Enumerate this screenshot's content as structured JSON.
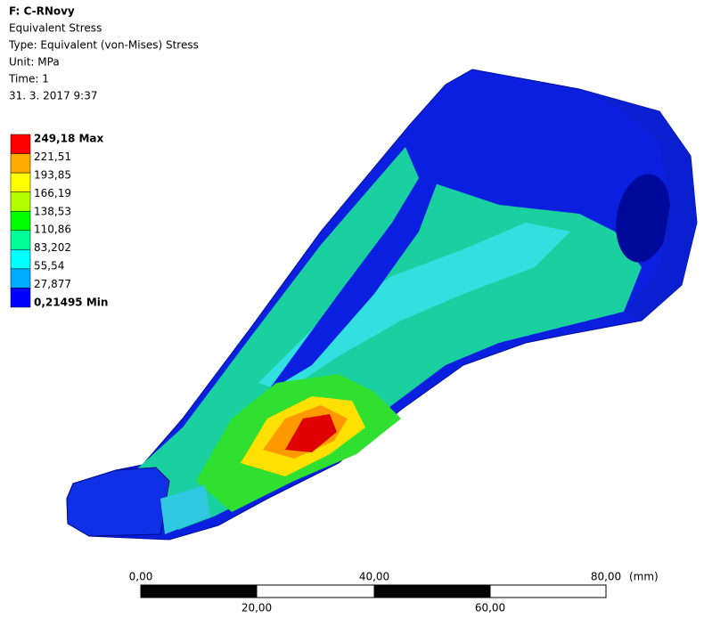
{
  "header": {
    "title": "F: C-RNovy",
    "lines": [
      "Equivalent Stress",
      "Type: Equivalent (von-Mises) Stress",
      "Unit: MPa",
      "Time: 1",
      "31. 3. 2017 9:37"
    ]
  },
  "legend": {
    "labels": [
      "249,18 Max",
      "221,51",
      "193,85",
      "166,19",
      "138,53",
      "110,86",
      "83,202",
      "55,54",
      "27,877",
      "0,21495 Min"
    ],
    "colors": [
      "#ff0000",
      "#ffaa00",
      "#ffff00",
      "#b4ff00",
      "#00ff00",
      "#00ff99",
      "#00ffff",
      "#00aaff",
      "#0000ff"
    ]
  },
  "scale_bar": {
    "top_labels": [
      "0,00",
      "40,00",
      "80,00"
    ],
    "unit": "(mm)",
    "bottom_labels": [
      "20,00",
      "60,00"
    ]
  }
}
